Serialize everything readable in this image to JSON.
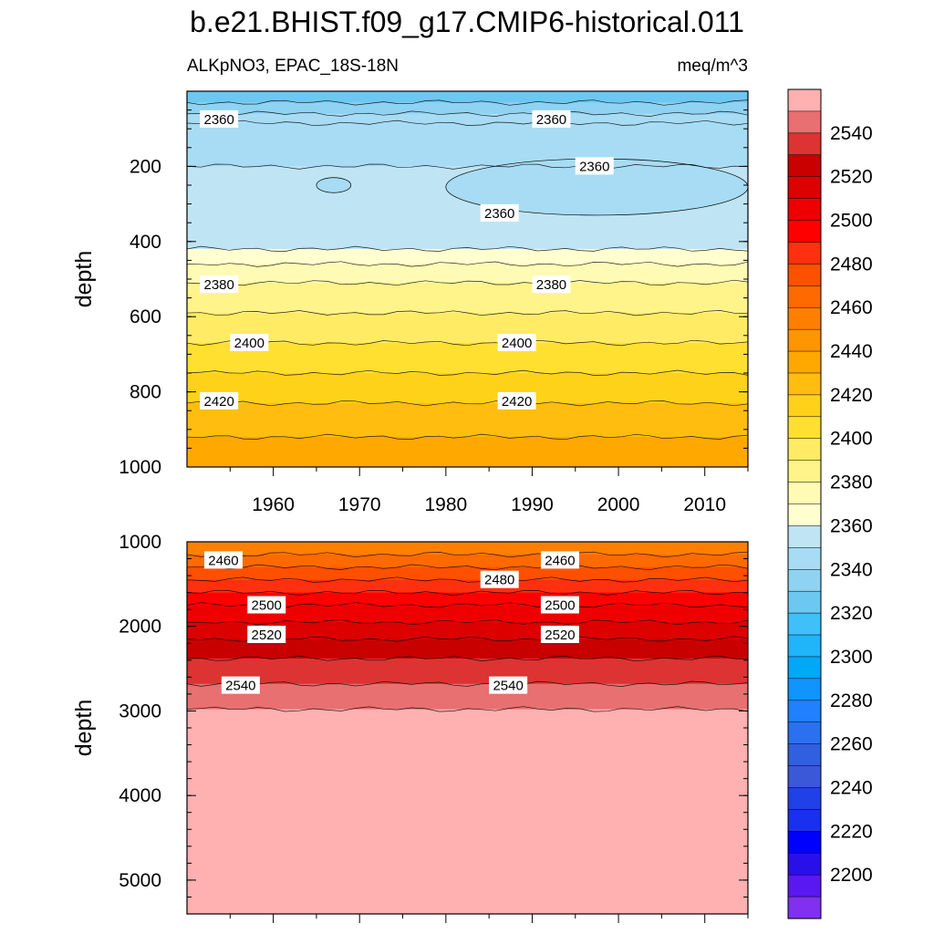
{
  "title": "b.e21.BHIST.f09_g17.CMIP6-historical.011",
  "subtitle_left": "ALKpNO3, EPAC_18S-18N",
  "subtitle_right": "meq/m^3",
  "chart_data": [
    {
      "type": "heatmap",
      "name": "upper",
      "ylabel": "depth",
      "xlim": [
        1950,
        2015
      ],
      "ylim": [
        1000,
        0
      ],
      "x_ticks": [
        1960,
        1970,
        1980,
        1990,
        2000,
        2010
      ],
      "y_ticks": [
        200,
        400,
        600,
        800,
        1000
      ],
      "bands": [
        {
          "top": 0,
          "bottom": 30,
          "color": "#6cc8f0"
        },
        {
          "top": 30,
          "bottom": 60,
          "color": "#8fd2f2"
        },
        {
          "top": 60,
          "bottom": 200,
          "color": "#a7dcf4"
        },
        {
          "top": 200,
          "bottom": 420,
          "color": "#bfe4f4"
        },
        {
          "top": 420,
          "bottom": 460,
          "color": "#ffffd0"
        },
        {
          "top": 460,
          "bottom": 510,
          "color": "#fffab4"
        },
        {
          "top": 510,
          "bottom": 590,
          "color": "#fff48a"
        },
        {
          "top": 590,
          "bottom": 670,
          "color": "#ffec64"
        },
        {
          "top": 670,
          "bottom": 750,
          "color": "#ffe030"
        },
        {
          "top": 750,
          "bottom": 830,
          "color": "#ffd21a"
        },
        {
          "top": 830,
          "bottom": 920,
          "color": "#ffbd10"
        },
        {
          "top": 920,
          "bottom": 1000,
          "color": "#ffa800"
        }
      ],
      "contour_depths": [
        30,
        60,
        85,
        200,
        420,
        460,
        510,
        590,
        670,
        750,
        830,
        920
      ],
      "contour_labels": [
        {
          "text": "2360",
          "x": 1951.5,
          "y": 75
        },
        {
          "text": "2360",
          "x": 1990,
          "y": 75
        },
        {
          "text": "2360",
          "x": 1995,
          "y": 200
        },
        {
          "text": "2360",
          "x": 1984,
          "y": 325
        },
        {
          "text": "2380",
          "x": 1951.5,
          "y": 515
        },
        {
          "text": "2380",
          "x": 1990,
          "y": 515
        },
        {
          "text": "2400",
          "x": 1955,
          "y": 670
        },
        {
          "text": "2400",
          "x": 1986,
          "y": 670
        },
        {
          "text": "2420",
          "x": 1951.5,
          "y": 825
        },
        {
          "text": "2420",
          "x": 1986,
          "y": 825
        }
      ],
      "blobs": [
        {
          "x1": 1980,
          "x2": 2015,
          "y1": 180,
          "y2": 330,
          "color": "#a7dcf4"
        },
        {
          "x1": 1965,
          "x2": 1969,
          "y1": 230,
          "y2": 270,
          "color": "#a7dcf4"
        }
      ]
    },
    {
      "type": "heatmap",
      "name": "lower",
      "ylabel": "depth",
      "xlim": [
        1950,
        2015
      ],
      "ylim": [
        5400,
        1000
      ],
      "y_ticks": [
        1000,
        2000,
        3000,
        4000,
        5000
      ],
      "bands": [
        {
          "top": 1000,
          "bottom": 1150,
          "color": "#ff8000"
        },
        {
          "top": 1150,
          "bottom": 1300,
          "color": "#ff6a00"
        },
        {
          "top": 1300,
          "bottom": 1450,
          "color": "#ff5000"
        },
        {
          "top": 1450,
          "bottom": 1600,
          "color": "#ff3010"
        },
        {
          "top": 1600,
          "bottom": 1750,
          "color": "#ff0000"
        },
        {
          "top": 1750,
          "bottom": 1950,
          "color": "#ee0000"
        },
        {
          "top": 1950,
          "bottom": 2150,
          "color": "#dc0000"
        },
        {
          "top": 2150,
          "bottom": 2380,
          "color": "#c80000"
        },
        {
          "top": 2380,
          "bottom": 2680,
          "color": "#dd3333"
        },
        {
          "top": 2680,
          "bottom": 2980,
          "color": "#e87070"
        },
        {
          "top": 2980,
          "bottom": 5400,
          "color": "#ffb0b0"
        }
      ],
      "contour_depths": [
        1150,
        1300,
        1450,
        1600,
        1750,
        1950,
        2150,
        2380,
        2680,
        2980
      ],
      "contour_labels": [
        {
          "text": "2460",
          "x": 1952,
          "y": 1220
        },
        {
          "text": "2460",
          "x": 1991,
          "y": 1220
        },
        {
          "text": "2480",
          "x": 1984,
          "y": 1450
        },
        {
          "text": "2500",
          "x": 1957,
          "y": 1750
        },
        {
          "text": "2500",
          "x": 1991,
          "y": 1750
        },
        {
          "text": "2520",
          "x": 1957,
          "y": 2100
        },
        {
          "text": "2520",
          "x": 1991,
          "y": 2100
        },
        {
          "text": "2540",
          "x": 1954,
          "y": 2700
        },
        {
          "text": "2540",
          "x": 1985,
          "y": 2700
        }
      ]
    }
  ],
  "colorbar": {
    "labels": [
      "2540",
      "2520",
      "2500",
      "2480",
      "2460",
      "2440",
      "2420",
      "2400",
      "2380",
      "2360",
      "2340",
      "2320",
      "2300",
      "2280",
      "2260",
      "2240",
      "2220",
      "2200"
    ],
    "colors": [
      "#ffb0b0",
      "#e87070",
      "#dd3333",
      "#c80000",
      "#dc0000",
      "#ee0000",
      "#ff0000",
      "#ff3010",
      "#ff5000",
      "#ff6a00",
      "#ff8000",
      "#ff9600",
      "#ffa800",
      "#ffbd10",
      "#ffd21a",
      "#ffe030",
      "#ffec64",
      "#fff48a",
      "#fffab4",
      "#ffffd0",
      "#bfe4f4",
      "#a7dcf4",
      "#8fd2f2",
      "#6cc8f0",
      "#40c0f8",
      "#20b4f8",
      "#00a8f8",
      "#1094ff",
      "#2080ff",
      "#2a70f0",
      "#3060e0",
      "#3a58d8",
      "#2040e8",
      "#1a30f0",
      "#0000ff",
      "#2a10e8",
      "#5a18f0",
      "#8030f0"
    ]
  }
}
